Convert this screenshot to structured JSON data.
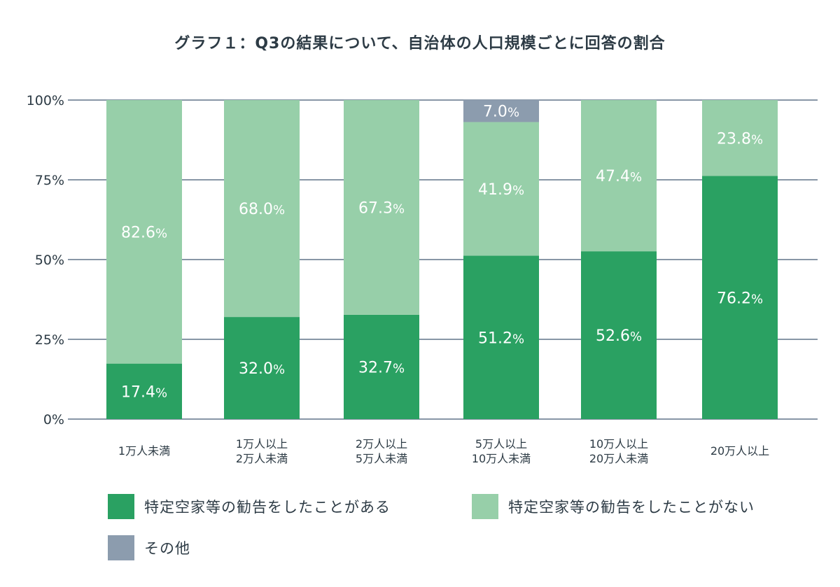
{
  "chart_data": {
    "type": "bar",
    "stacked": true,
    "title": "グラフ１：Q3の結果について、自治体の人口規模ごとに回答の割合",
    "categories": [
      [
        "1万人未満"
      ],
      [
        "1万人以上",
        "2万人未満"
      ],
      [
        "2万人以上",
        "5万人未満"
      ],
      [
        "5万人以上",
        "10万人未満"
      ],
      [
        "10万人以上",
        "20万人未満"
      ],
      [
        "20万人以上"
      ]
    ],
    "series": [
      {
        "name": "特定空家等の勧告をしたことがある",
        "color": "#2aa162",
        "values": [
          17.4,
          32.0,
          32.7,
          51.2,
          52.6,
          76.2
        ],
        "labels": [
          "17.4",
          "32.0",
          "32.7",
          "51.2",
          "52.6",
          "76.2"
        ]
      },
      {
        "name": "特定空家等の勧告をしたことがない",
        "color": "#97cfa9",
        "values": [
          82.6,
          68.0,
          67.3,
          41.9,
          47.4,
          23.8
        ],
        "labels": [
          "82.6",
          "68.0",
          "67.3",
          "41.9",
          "47.4",
          "23.8"
        ]
      },
      {
        "name": "その他",
        "color": "#8c9cae",
        "values": [
          0,
          0,
          0,
          7.0,
          0,
          0
        ],
        "labels": [
          "",
          "",
          "",
          "7.0",
          "",
          ""
        ]
      }
    ],
    "percent_suffix": "%",
    "ylim": [
      0,
      100
    ],
    "yticks": [
      0,
      25,
      50,
      75,
      100
    ],
    "ytick_labels": [
      "0%",
      "25%",
      "50%",
      "75%",
      "100%"
    ],
    "grid": true,
    "legend_position": "bottom",
    "colors": {
      "grid": "#8896a6",
      "axis_text": "#2d3b45",
      "label_text": "#ffffff"
    }
  }
}
